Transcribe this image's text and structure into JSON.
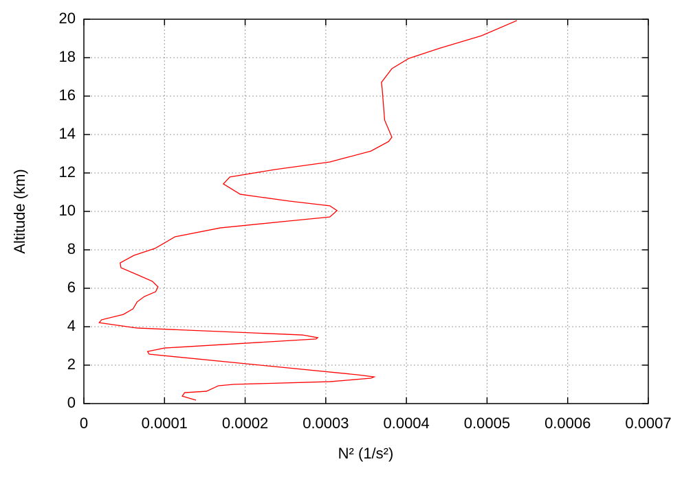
{
  "chart_data": {
    "type": "line",
    "xlabel": "N² (1/s²)",
    "ylabel": "Altitude (km)",
    "x": [
      0.000139,
      0.000122,
      0.000125,
      0.000152,
      0.000167,
      0.000186,
      0.000305,
      0.000356,
      0.00036,
      0.000339,
      8.1e-05,
      7.9e-05,
      0.0001,
      0.000288,
      0.00029,
      0.000271,
      6.6e-05,
      1.9e-05,
      2.2e-05,
      4.9e-05,
      6.1e-05,
      6.6e-05,
      7.5e-05,
      8.9e-05,
      9.2e-05,
      8.5e-05,
      6.6e-05,
      4.6e-05,
      4.5e-05,
      6.2e-05,
      8.8e-05,
      0.0001,
      0.000113,
      0.000169,
      0.000254,
      0.000305,
      0.000314,
      0.000305,
      0.000254,
      0.000194,
      0.000173,
      0.000181,
      0.000237,
      0.000305,
      0.000356,
      0.000378,
      0.000382,
      0.000373,
      0.000371,
      0.00037,
      0.000369,
      0.000382,
      0.000403,
      0.000442,
      0.000493,
      0.000537
    ],
    "values": [
      0.18,
      0.39,
      0.57,
      0.64,
      0.93,
      1.0,
      1.14,
      1.32,
      1.39,
      1.5,
      2.57,
      2.71,
      2.89,
      3.36,
      3.43,
      3.57,
      3.93,
      4.21,
      4.36,
      4.64,
      4.93,
      5.29,
      5.57,
      5.82,
      6.07,
      6.36,
      6.71,
      7.07,
      7.32,
      7.71,
      8.07,
      8.36,
      8.68,
      9.14,
      9.5,
      9.71,
      10.04,
      10.29,
      10.54,
      10.89,
      11.43,
      11.79,
      12.18,
      12.57,
      13.14,
      13.64,
      13.86,
      14.75,
      15.82,
      16.36,
      16.71,
      17.43,
      17.96,
      18.5,
      19.14,
      19.93
    ],
    "color": "#ff0000",
    "xlim": [
      0,
      0.0007
    ],
    "xticks": [
      0,
      0.0001,
      0.0002,
      0.0003,
      0.0004,
      0.0005,
      0.0006,
      0.0007
    ],
    "ylim": [
      0,
      20
    ],
    "yticks": [
      0,
      2,
      4,
      6,
      8,
      10,
      12,
      14,
      16,
      18,
      20
    ],
    "grid": true
  }
}
